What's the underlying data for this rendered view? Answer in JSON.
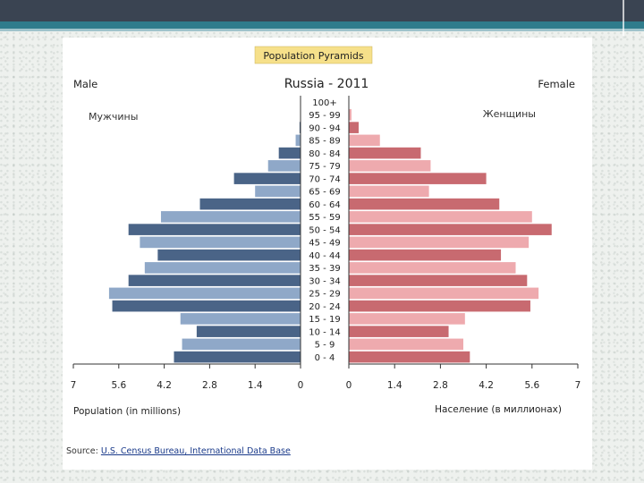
{
  "slide": {
    "colors": {
      "top_bar": "#3a4452",
      "accent": "#2f7c8c",
      "panel": "#ffffff"
    }
  },
  "source": {
    "prefix": "Source:",
    "link_text": "U.S. Census Bureau, International Data Base"
  },
  "chart_data": {
    "type": "bar",
    "orientation": "horizontal-pyramid",
    "header_badge": "Population Pyramids",
    "title": "Russia - 2011",
    "left_header": "Male",
    "right_header": "Female",
    "left_sublabel": "Мужчины",
    "right_sublabel": "Женщины",
    "xlabel_left": "Population (in millions)",
    "xlabel_right": "Население (в миллионах)",
    "xlim": [
      0,
      7
    ],
    "ticks_left": [
      "7",
      "5.6",
      "4.2",
      "2.8",
      "1.4",
      "0"
    ],
    "ticks_right": [
      "0",
      "1.4",
      "2.8",
      "4.2",
      "5.6",
      "7"
    ],
    "grid": false,
    "categories": [
      "100+",
      "95 - 99",
      "90 - 94",
      "85 - 89",
      "80 - 84",
      "75 - 79",
      "70 - 74",
      "65 - 69",
      "60 - 64",
      "55 - 59",
      "50 - 54",
      "45 - 49",
      "40 - 44",
      "35 - 39",
      "30 - 34",
      "25 - 29",
      "20 - 24",
      "15 - 19",
      "10 - 14",
      "5 - 9",
      "0 - 4"
    ],
    "series": [
      {
        "name": "Male",
        "values": [
          0.0,
          0.01,
          0.03,
          0.15,
          0.67,
          1.0,
          2.05,
          1.4,
          3.1,
          4.3,
          5.3,
          4.95,
          4.4,
          4.8,
          5.3,
          5.9,
          5.8,
          3.7,
          3.2,
          3.65,
          3.9
        ],
        "colors": [
          "#4a6487",
          "#8fa8c8"
        ]
      },
      {
        "name": "Female",
        "values": [
          0.0,
          0.08,
          0.3,
          0.95,
          2.2,
          2.5,
          4.2,
          2.45,
          4.6,
          5.6,
          6.2,
          5.5,
          4.65,
          5.1,
          5.45,
          5.8,
          5.55,
          3.55,
          3.05,
          3.5,
          3.7
        ],
        "colors": [
          "#c86a70",
          "#eeaaae"
        ]
      }
    ]
  }
}
